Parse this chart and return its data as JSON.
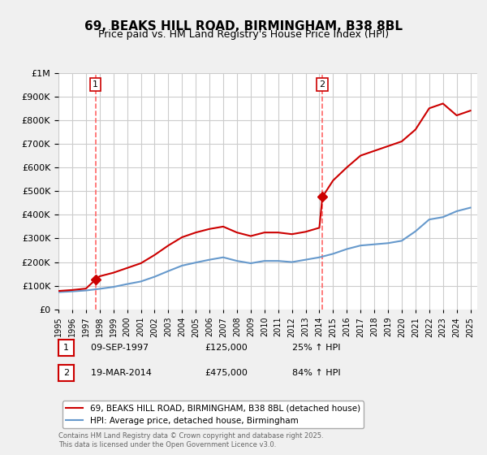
{
  "title": "69, BEAKS HILL ROAD, BIRMINGHAM, B38 8BL",
  "subtitle": "Price paid vs. HM Land Registry's House Price Index (HPI)",
  "background_color": "#f0f0f0",
  "plot_background": "#ffffff",
  "ylim": [
    0,
    1000000
  ],
  "xlim_start": 1995,
  "xlim_end": 2025.5,
  "sale1_date": 1997.69,
  "sale1_price": 125000,
  "sale1_label": "1",
  "sale2_date": 2014.22,
  "sale2_price": 475000,
  "sale2_label": "2",
  "legend_label_property": "69, BEAKS HILL ROAD, BIRMINGHAM, B38 8BL (detached house)",
  "legend_label_hpi": "HPI: Average price, detached house, Birmingham",
  "table_rows": [
    {
      "num": "1",
      "date": "09-SEP-1997",
      "price": "£125,000",
      "change": "25% ↑ HPI"
    },
    {
      "num": "2",
      "date": "19-MAR-2014",
      "price": "£475,000",
      "change": "84% ↑ HPI"
    }
  ],
  "footer": "Contains HM Land Registry data © Crown copyright and database right 2025.\nThis data is licensed under the Open Government Licence v3.0.",
  "property_color": "#cc0000",
  "hpi_color": "#6699cc",
  "vline_color": "#ff6666",
  "marker_color": "#cc0000",
  "hpi_years": [
    1995,
    1996,
    1997,
    1998,
    1999,
    2000,
    2001,
    2002,
    2003,
    2004,
    2005,
    2006,
    2007,
    2008,
    2009,
    2010,
    2011,
    2012,
    2013,
    2014,
    2015,
    2016,
    2017,
    2018,
    2019,
    2020,
    2021,
    2022,
    2023,
    2024,
    2025
  ],
  "hpi_values": [
    73000,
    76000,
    80000,
    87000,
    95000,
    107000,
    118000,
    138000,
    162000,
    185000,
    198000,
    210000,
    220000,
    205000,
    195000,
    205000,
    205000,
    200000,
    210000,
    220000,
    235000,
    255000,
    270000,
    275000,
    280000,
    290000,
    330000,
    380000,
    390000,
    415000,
    430000
  ],
  "prop_years": [
    1995,
    1996,
    1997,
    1997.69,
    1998,
    1999,
    2000,
    2001,
    2002,
    2003,
    2004,
    2005,
    2006,
    2007,
    2008,
    2009,
    2010,
    2011,
    2012,
    2013,
    2014,
    2014.22,
    2015,
    2016,
    2017,
    2018,
    2019,
    2020,
    2021,
    2022,
    2023,
    2024,
    2025
  ],
  "prop_values": [
    78000,
    82000,
    88000,
    125000,
    140000,
    155000,
    175000,
    195000,
    230000,
    270000,
    305000,
    325000,
    340000,
    350000,
    325000,
    310000,
    325000,
    325000,
    318000,
    328000,
    345000,
    475000,
    545000,
    600000,
    650000,
    670000,
    690000,
    710000,
    760000,
    850000,
    870000,
    820000,
    840000
  ]
}
